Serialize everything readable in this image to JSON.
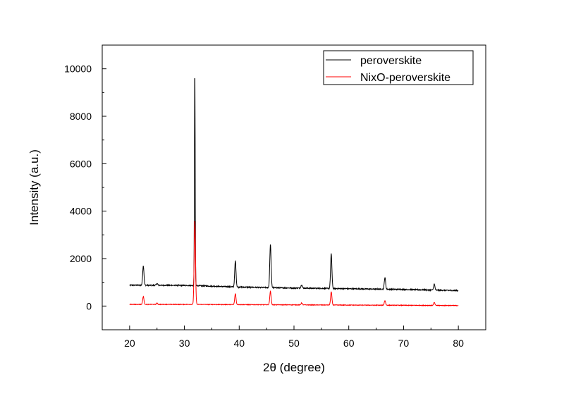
{
  "chart_data": {
    "type": "line",
    "xlabel": "2θ (degree)",
    "ylabel": "Intensity (a.u.)",
    "xlim": [
      15,
      85
    ],
    "ylim": [
      -1000,
      11000
    ],
    "x_ticks": [
      20,
      30,
      40,
      50,
      60,
      70,
      80
    ],
    "y_ticks": [
      0,
      2000,
      4000,
      6000,
      8000,
      10000
    ],
    "grid": false,
    "legend_position": "top-right",
    "series": [
      {
        "name": "peroverskite",
        "color": "#000000",
        "baseline": [
          [
            20,
            880
          ],
          [
            30,
            870
          ],
          [
            32,
            860
          ],
          [
            40,
            800
          ],
          [
            50,
            760
          ],
          [
            60,
            730
          ],
          [
            70,
            700
          ],
          [
            80,
            650
          ]
        ],
        "peaks": [
          {
            "x": 22.5,
            "y": 1700
          },
          {
            "x": 25.0,
            "y": 950
          },
          {
            "x": 31.9,
            "y": 9950
          },
          {
            "x": 39.3,
            "y": 1900
          },
          {
            "x": 45.7,
            "y": 2600
          },
          {
            "x": 51.4,
            "y": 900
          },
          {
            "x": 56.8,
            "y": 2200
          },
          {
            "x": 66.6,
            "y": 1200
          },
          {
            "x": 75.6,
            "y": 920
          }
        ]
      },
      {
        "name": "NixO-peroverskite",
        "color": "#ff0000",
        "baseline": [
          [
            20,
            70
          ],
          [
            30,
            70
          ],
          [
            40,
            60
          ],
          [
            50,
            50
          ],
          [
            60,
            40
          ],
          [
            70,
            30
          ],
          [
            80,
            20
          ]
        ],
        "peaks": [
          {
            "x": 22.5,
            "y": 400
          },
          {
            "x": 25.0,
            "y": 120
          },
          {
            "x": 31.9,
            "y": 3600
          },
          {
            "x": 39.3,
            "y": 520
          },
          {
            "x": 45.7,
            "y": 620
          },
          {
            "x": 51.4,
            "y": 130
          },
          {
            "x": 56.8,
            "y": 600
          },
          {
            "x": 66.6,
            "y": 230
          },
          {
            "x": 75.6,
            "y": 150
          }
        ]
      }
    ]
  }
}
